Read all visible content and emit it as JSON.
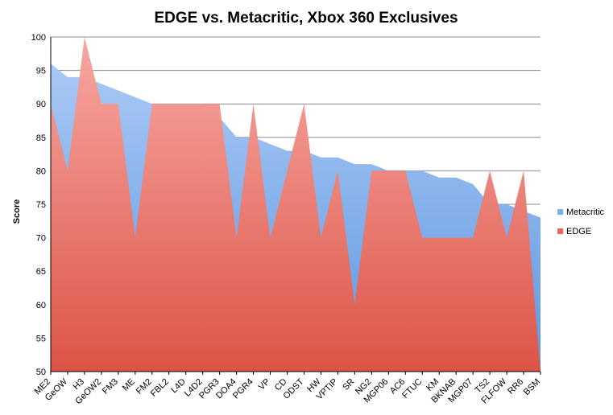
{
  "chart_data": {
    "type": "area",
    "title": "EDGE vs. Metacritic, Xbox 360 Exclusives",
    "xlabel": "",
    "ylabel": "Score",
    "ylim": [
      50,
      100
    ],
    "yticks": [
      50,
      55,
      60,
      65,
      70,
      75,
      80,
      85,
      90,
      95,
      100
    ],
    "grid": true,
    "legend_position": "right",
    "categories": [
      "ME2",
      "GeOW",
      "H3",
      "GeOW2",
      "FM3",
      "ME",
      "FM2",
      "FBL2",
      "L4D",
      "L4D2",
      "PGR3",
      "DOA4",
      "PGR4",
      "VP",
      "CD",
      "ODST",
      "HW",
      "VPTIP",
      "SR",
      "NG2",
      "MGP06",
      "AC6",
      "FTUC",
      "KM",
      "BKNAB",
      "MGP07",
      "TS2",
      "FLFOW",
      "RR6",
      "BSM"
    ],
    "series": [
      {
        "name": "Metacritic",
        "color": "#7aaef0",
        "values": [
          96,
          94,
          94,
          93,
          92,
          91,
          90,
          90,
          90,
          90,
          88,
          85,
          85,
          84,
          83,
          83,
          82,
          82,
          81,
          81,
          80,
          80,
          80,
          79,
          79,
          78,
          75,
          75,
          74,
          73
        ]
      },
      {
        "name": "EDGE",
        "color": "#ef7a72",
        "values": [
          90,
          80,
          100,
          90,
          90,
          70,
          90,
          90,
          90,
          90,
          90,
          70,
          90,
          70,
          80,
          90,
          70,
          80,
          60,
          80,
          80,
          80,
          70,
          70,
          70,
          70,
          80,
          70,
          80,
          50
        ]
      }
    ]
  }
}
